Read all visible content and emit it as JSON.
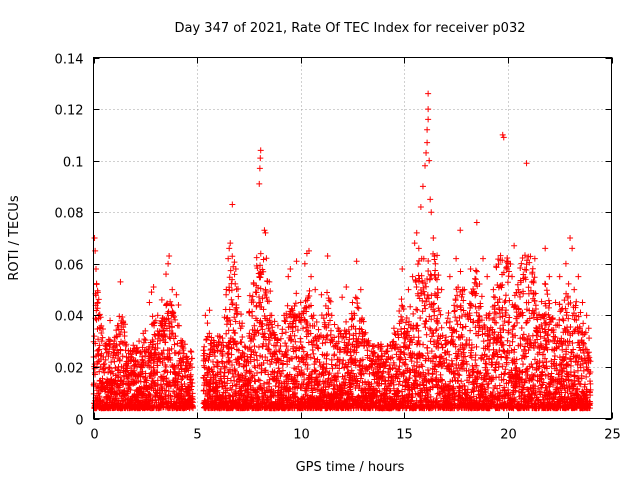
{
  "chart_data": {
    "type": "scatter",
    "title": "Day 347 of 2021, Rate Of TEC Index for receiver p032",
    "xlabel": "GPS time / hours",
    "ylabel": "ROTI / TECUs",
    "xlim": [
      0,
      25
    ],
    "ylim": [
      0,
      0.14
    ],
    "xticks": [
      0,
      5,
      10,
      15,
      20,
      25
    ],
    "yticks": [
      0,
      0.02,
      0.04,
      0.06,
      0.08,
      0.1,
      0.12,
      0.14
    ],
    "xtick_labels": [
      "0",
      "5",
      "10",
      "15",
      "20",
      "25"
    ],
    "ytick_labels": [
      "0",
      "0.02",
      "0.04",
      "0.06",
      "0.08",
      "0.1",
      "0.12",
      "0.14"
    ],
    "grid": true,
    "marker": "plus",
    "color": "#ff0000",
    "data_gaps_hours": [
      [
        4.8,
        5.3
      ]
    ],
    "x_extent_hours": [
      0,
      24
    ],
    "series": [
      {
        "points": [
          [
            0.05,
            0.07
          ],
          [
            0.08,
            0.065
          ],
          [
            0.12,
            0.058
          ],
          [
            0.15,
            0.052
          ],
          [
            0.2,
            0.045
          ],
          [
            0.25,
            0.04
          ],
          [
            0.3,
            0.035
          ],
          [
            0.4,
            0.03
          ],
          [
            0.6,
            0.028
          ],
          [
            0.8,
            0.038
          ],
          [
            1.0,
            0.03
          ],
          [
            1.2,
            0.025
          ],
          [
            1.3,
            0.053
          ],
          [
            1.5,
            0.032
          ],
          [
            1.8,
            0.024
          ],
          [
            2.0,
            0.026
          ],
          [
            2.2,
            0.03
          ],
          [
            2.4,
            0.033
          ],
          [
            2.5,
            0.034
          ],
          [
            2.7,
            0.045
          ],
          [
            2.8,
            0.049
          ],
          [
            2.9,
            0.051
          ],
          [
            3.1,
            0.04
          ],
          [
            3.3,
            0.046
          ],
          [
            3.5,
            0.056
          ],
          [
            3.6,
            0.06
          ],
          [
            3.65,
            0.063
          ],
          [
            3.8,
            0.05
          ],
          [
            4.0,
            0.048
          ],
          [
            4.1,
            0.044
          ],
          [
            4.3,
            0.03
          ],
          [
            4.5,
            0.022
          ],
          [
            4.7,
            0.015
          ],
          [
            5.4,
            0.04
          ],
          [
            5.5,
            0.037
          ],
          [
            5.6,
            0.042
          ],
          [
            5.8,
            0.028
          ],
          [
            6.0,
            0.032
          ],
          [
            6.2,
            0.025
          ],
          [
            6.4,
            0.048
          ],
          [
            6.5,
            0.062
          ],
          [
            6.55,
            0.066
          ],
          [
            6.6,
            0.068
          ],
          [
            6.7,
            0.083
          ],
          [
            6.9,
            0.043
          ],
          [
            7.1,
            0.035
          ],
          [
            7.3,
            0.028
          ],
          [
            7.6,
            0.03
          ],
          [
            7.9,
            0.038
          ],
          [
            8.0,
            0.091
          ],
          [
            8.03,
            0.097
          ],
          [
            8.05,
            0.101
          ],
          [
            8.07,
            0.104
          ],
          [
            8.25,
            0.073
          ],
          [
            8.3,
            0.072
          ],
          [
            8.3,
            0.05
          ],
          [
            8.6,
            0.04
          ],
          [
            8.9,
            0.036
          ],
          [
            9.2,
            0.04
          ],
          [
            9.4,
            0.055
          ],
          [
            9.5,
            0.058
          ],
          [
            9.8,
            0.061
          ],
          [
            10.0,
            0.045
          ],
          [
            10.2,
            0.06
          ],
          [
            10.3,
            0.064
          ],
          [
            10.4,
            0.065
          ],
          [
            10.5,
            0.055
          ],
          [
            10.7,
            0.05
          ],
          [
            11.0,
            0.048
          ],
          [
            11.3,
            0.063
          ],
          [
            11.5,
            0.04
          ],
          [
            11.8,
            0.035
          ],
          [
            12.0,
            0.047
          ],
          [
            12.2,
            0.051
          ],
          [
            12.5,
            0.045
          ],
          [
            12.7,
            0.061
          ],
          [
            12.9,
            0.05
          ],
          [
            13.1,
            0.03
          ],
          [
            13.5,
            0.025
          ],
          [
            13.8,
            0.02
          ],
          [
            14.2,
            0.028
          ],
          [
            14.5,
            0.035
          ],
          [
            14.9,
            0.058
          ],
          [
            15.2,
            0.05
          ],
          [
            15.4,
            0.055
          ],
          [
            15.5,
            0.068
          ],
          [
            15.6,
            0.072
          ],
          [
            15.7,
            0.066
          ],
          [
            15.8,
            0.082
          ],
          [
            15.9,
            0.09
          ],
          [
            16.0,
            0.098
          ],
          [
            16.05,
            0.103
          ],
          [
            16.1,
            0.107
          ],
          [
            16.1,
            0.112
          ],
          [
            16.15,
            0.116
          ],
          [
            16.15,
            0.12
          ],
          [
            16.15,
            0.126
          ],
          [
            16.2,
            0.1
          ],
          [
            16.25,
            0.085
          ],
          [
            16.3,
            0.08
          ],
          [
            16.4,
            0.07
          ],
          [
            16.5,
            0.06
          ],
          [
            16.8,
            0.05
          ],
          [
            17.2,
            0.055
          ],
          [
            17.5,
            0.062
          ],
          [
            17.7,
            0.073
          ],
          [
            17.9,
            0.05
          ],
          [
            18.2,
            0.058
          ],
          [
            18.5,
            0.076
          ],
          [
            18.8,
            0.062
          ],
          [
            19.0,
            0.055
          ],
          [
            19.3,
            0.05
          ],
          [
            19.5,
            0.045
          ],
          [
            19.75,
            0.11
          ],
          [
            19.8,
            0.109
          ],
          [
            20.0,
            0.061
          ],
          [
            20.2,
            0.055
          ],
          [
            20.3,
            0.067
          ],
          [
            20.5,
            0.05
          ],
          [
            20.9,
            0.099
          ],
          [
            21.0,
            0.045
          ],
          [
            21.3,
            0.062
          ],
          [
            21.5,
            0.04
          ],
          [
            21.8,
            0.066
          ],
          [
            22.0,
            0.055
          ],
          [
            22.3,
            0.045
          ],
          [
            22.5,
            0.055
          ],
          [
            22.8,
            0.06
          ],
          [
            23.0,
            0.07
          ],
          [
            23.1,
            0.066
          ],
          [
            23.2,
            0.05
          ],
          [
            23.4,
            0.055
          ],
          [
            23.6,
            0.045
          ],
          [
            23.8,
            0.04
          ],
          [
            23.9,
            0.035
          ]
        ]
      }
    ]
  }
}
